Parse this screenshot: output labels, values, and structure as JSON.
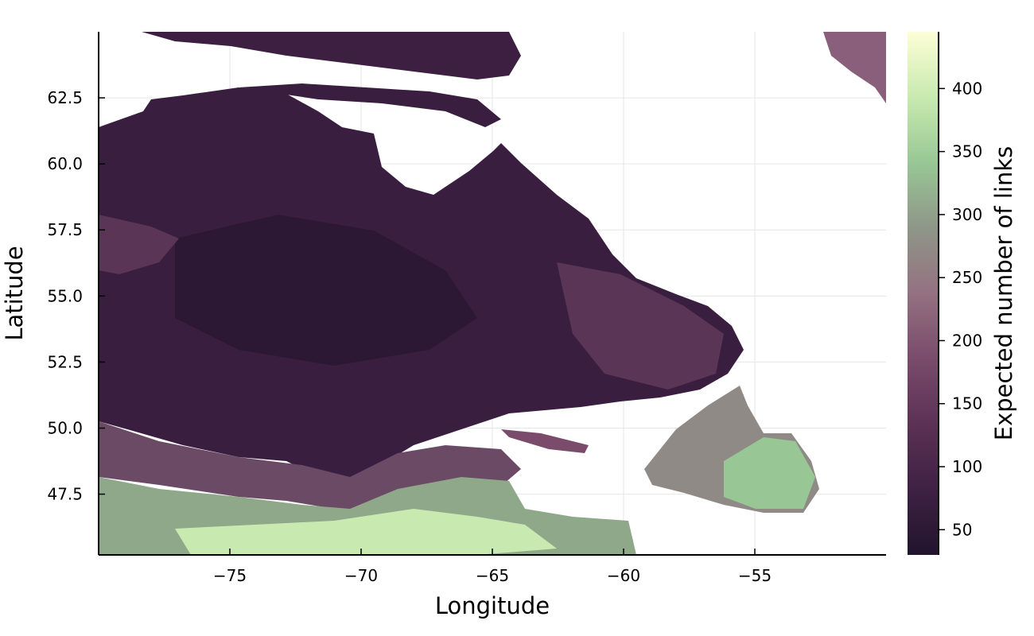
{
  "chart_data": {
    "type": "heatmap",
    "title": "",
    "xlabel": "Longitude",
    "ylabel": "Latitude",
    "xlim": [
      -80,
      -50
    ],
    "ylim": [
      45.2,
      65
    ],
    "x_ticks": [
      "−75",
      "−70",
      "−65",
      "−60",
      "−55"
    ],
    "x_tick_values": [
      -75,
      -70,
      -65,
      -60,
      -55
    ],
    "y_ticks": [
      "47.5",
      "50.0",
      "52.5",
      "55.0",
      "57.5",
      "60.0",
      "62.5"
    ],
    "y_tick_values": [
      47.5,
      50.0,
      52.5,
      55.0,
      57.5,
      60.0,
      62.5
    ],
    "grid": true,
    "colorbar": {
      "label": "Expected number of links",
      "range": [
        30,
        445
      ],
      "ticks": [
        "50",
        "100",
        "150",
        "200",
        "250",
        "300",
        "350",
        "400"
      ],
      "tick_values": [
        50,
        100,
        150,
        200,
        250,
        300,
        350,
        400
      ],
      "colormap": [
        "#21142d",
        "#3e2143",
        "#5b3155",
        "#7a4b6b",
        "#947181",
        "#8f9688",
        "#98c795",
        "#c8eab0",
        "#fdfed6"
      ]
    },
    "missing_value_color": "#ffffff"
  }
}
